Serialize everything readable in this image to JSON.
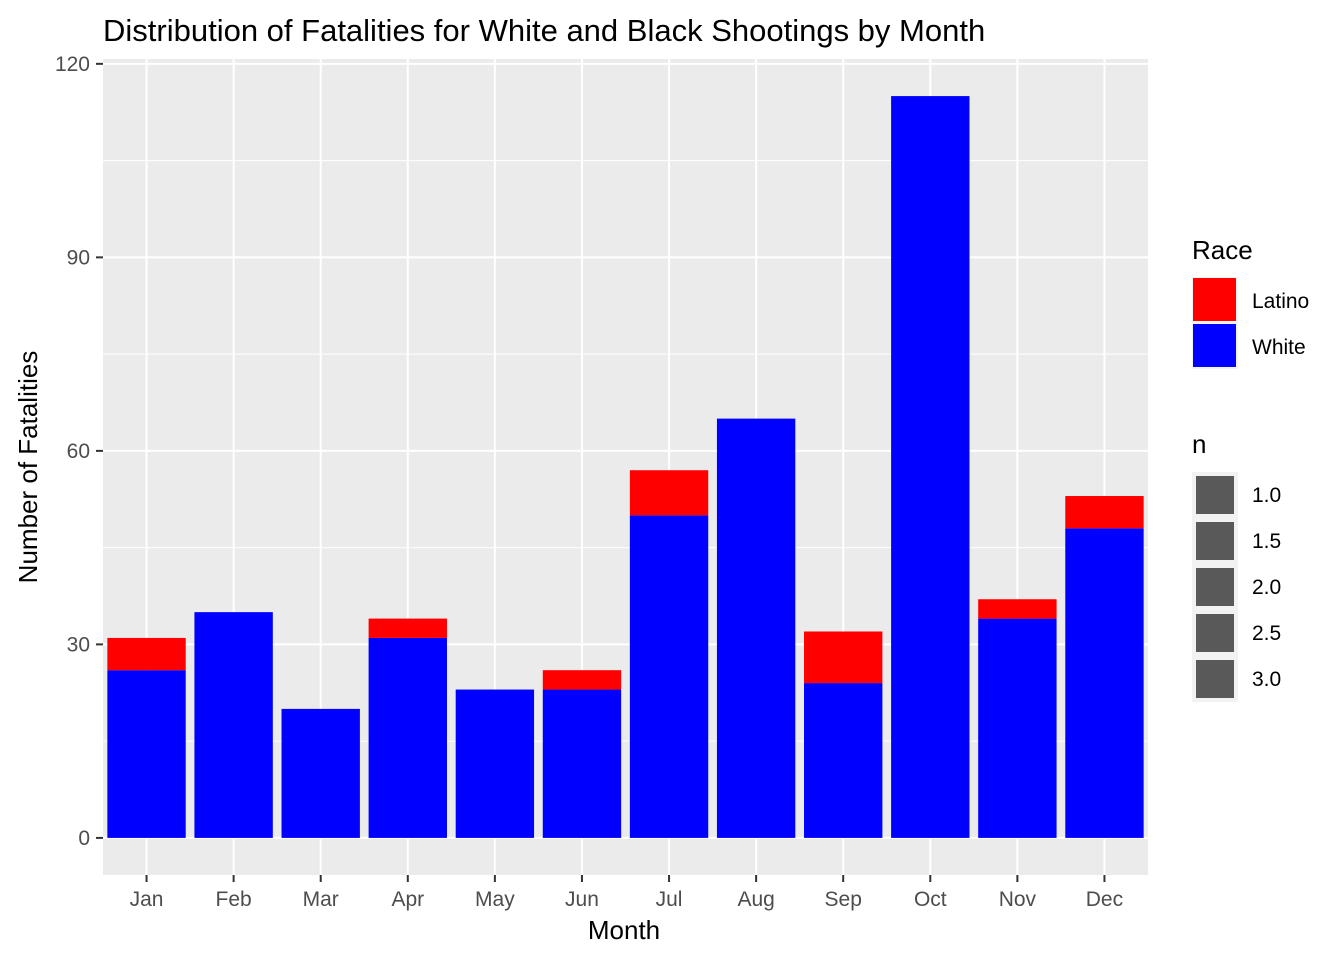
{
  "chart_data": {
    "type": "bar",
    "stacked": true,
    "title": "Distribution of Fatalities for White and Black Shootings by Month",
    "xlabel": "Month",
    "ylabel": "Number of Fatalities",
    "categories": [
      "Jan",
      "Feb",
      "Mar",
      "Apr",
      "May",
      "Jun",
      "Jul",
      "Aug",
      "Sep",
      "Oct",
      "Nov",
      "Dec"
    ],
    "series": [
      {
        "name": "White",
        "color": "#0000ff",
        "values": [
          26,
          35,
          20,
          31,
          23,
          23,
          50,
          65,
          24,
          115,
          34,
          48
        ]
      },
      {
        "name": "Latino",
        "color": "#ff0000",
        "values": [
          5,
          0,
          0,
          3,
          0,
          3,
          7,
          0,
          8,
          0,
          3,
          5
        ]
      }
    ],
    "ylim": [
      -5.75,
      120.75
    ],
    "yticks": [
      0,
      30,
      60,
      90,
      120
    ],
    "grid": true,
    "panel_background": "#ebebeb",
    "legend": {
      "placement": "right",
      "fill_title": "Race",
      "fill_items": [
        {
          "label": "Latino",
          "color": "#ff0000"
        },
        {
          "label": "White",
          "color": "#0000ff"
        }
      ],
      "size_title": "n",
      "size_items": [
        "1.0",
        "1.5",
        "2.0",
        "2.5",
        "3.0"
      ],
      "size_color": "#595959"
    }
  }
}
